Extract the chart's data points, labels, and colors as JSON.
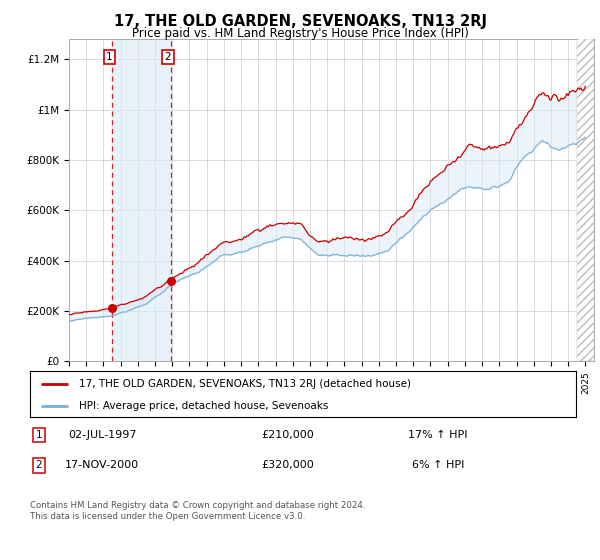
{
  "title": "17, THE OLD GARDEN, SEVENOAKS, TN13 2RJ",
  "subtitle": "Price paid vs. HM Land Registry's House Price Index (HPI)",
  "legend_line1": "17, THE OLD GARDEN, SEVENOAKS, TN13 2RJ (detached house)",
  "legend_line2": "HPI: Average price, detached house, Sevenoaks",
  "sale1_date": "02-JUL-1997",
  "sale1_price": "£210,000",
  "sale1_hpi": "17% ↑ HPI",
  "sale2_date": "17-NOV-2000",
  "sale2_price": "£320,000",
  "sale2_hpi": "6% ↑ HPI",
  "footer": "Contains HM Land Registry data © Crown copyright and database right 2024.\nThis data is licensed under the Open Government Licence v3.0.",
  "sale1_year": 1997.5,
  "sale2_year": 2000.9,
  "sale1_value": 210000,
  "sale2_value": 320000,
  "red_line_color": "#cc0000",
  "blue_line_color": "#7aaed6",
  "shading_color": "#d8eaf8",
  "background_color": "#ffffff",
  "grid_color": "#cccccc",
  "ylim": [
    0,
    1280000
  ],
  "xlim_start": 1995.0,
  "xlim_end": 2025.5,
  "yticks": [
    0,
    200000,
    400000,
    600000,
    800000,
    1000000,
    1200000
  ],
  "ylabels": [
    "£0",
    "£200K",
    "£400K",
    "£600K",
    "£800K",
    "£1M",
    "£1.2M"
  ]
}
